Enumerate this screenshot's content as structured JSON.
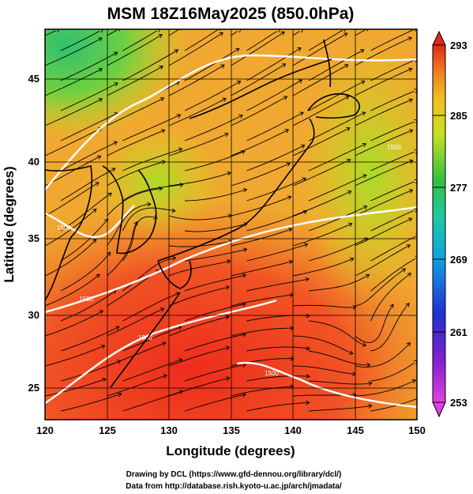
{
  "title": "MSM 18Z16May2025 (850.0hPa)",
  "xlabel": "Longitude (degrees)",
  "ylabel": "Latitude  (degrees)",
  "xticks": [
    "120",
    "125",
    "130",
    "135",
    "140",
    "145",
    "150"
  ],
  "yticks": [
    "25",
    "30",
    "35",
    "40",
    "45"
  ],
  "colorbar": {
    "ticks": [
      "293",
      "285",
      "277",
      "269",
      "261",
      "253"
    ],
    "min": 253,
    "max": 293,
    "units": ""
  },
  "credits": {
    "line1": "Drawing by DCL (https://www.gfd-dennou.org/library/dcl/)",
    "line2": "Data from http://database.rish.kyoto-u.ac.jp/arch/jmadata/"
  },
  "contour_labels": [
    "1500",
    "1500",
    "1500",
    "1500",
    "1500"
  ],
  "colors": {
    "warm": "#e8381c",
    "mid": "#c8e020",
    "cool": "#40c860",
    "contour": "#ffffff",
    "coast": "#000000"
  },
  "map_data": {
    "lon_range": [
      120,
      150
    ],
    "lat_range": [
      22.5,
      47.5
    ],
    "field": "temperature (K) with streamlines and 1500 m geopotential contour"
  }
}
